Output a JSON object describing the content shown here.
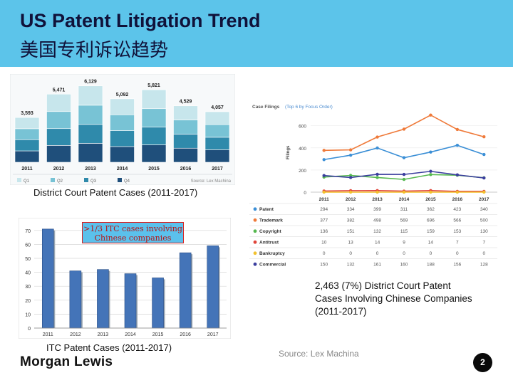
{
  "header": {
    "title": "US Patent Litigation Trend",
    "subtitle": "美国专利诉讼趋势"
  },
  "district_chart": {
    "caption": "District Court Patent Cases (2011-2017)",
    "source_label": "Source: Lex Machina",
    "colors": [
      "#c7e6ec",
      "#78c3d5",
      "#2f8aab",
      "#1f4f7b"
    ],
    "chart_data": {
      "type": "bar",
      "stacked": true,
      "categories": [
        "2011",
        "2012",
        "2013",
        "2014",
        "2015",
        "2016",
        "2017"
      ],
      "totals": [
        3593,
        5471,
        6129,
        5092,
        5821,
        4529,
        4057
      ],
      "total_labels": [
        "3,593",
        "5,471",
        "6,129",
        "5,092",
        "5,821",
        "4,529",
        "4,057"
      ],
      "series": [
        {
          "name": "Q1",
          "values": [
            900,
            1400,
            1550,
            1280,
            1520,
            1130,
            1040
          ]
        },
        {
          "name": "Q2",
          "values": [
            880,
            1370,
            1540,
            1270,
            1470,
            1140,
            1010
          ]
        },
        {
          "name": "Q3",
          "values": [
            900,
            1350,
            1520,
            1280,
            1430,
            1130,
            1000
          ]
        },
        {
          "name": "Q4",
          "values": [
            913,
            1351,
            1519,
            1262,
            1401,
            1129,
            1007
          ]
        }
      ]
    }
  },
  "itc_chart": {
    "caption": "ITC Patent Cases (2011-2017)",
    "callout": ">1/3 ITC cases involving Chinese companies",
    "chart_data": {
      "type": "bar",
      "categories": [
        "2011",
        "2012",
        "2013",
        "2014",
        "2015",
        "2016",
        "2017"
      ],
      "values": [
        71,
        41,
        42,
        39,
        36,
        54,
        59
      ],
      "yticks": [
        0,
        10,
        20,
        30,
        40,
        50,
        60,
        70
      ],
      "ylim": [
        0,
        75
      ],
      "grid": true
    }
  },
  "filings_chart": {
    "title": "Case Filings",
    "subtitle": "(Top 6 by Focus Order)",
    "ylabel": "Filings",
    "chart_data": {
      "type": "line",
      "x": [
        "2011",
        "2012",
        "2013",
        "2014",
        "2015",
        "2016",
        "2017"
      ],
      "yticks": [
        0,
        200,
        400,
        600
      ],
      "ylim": [
        0,
        720
      ],
      "series": [
        {
          "name": "Patent",
          "color": "#3b8fd6",
          "values": [
            294,
            334,
            399,
            311,
            362,
            423,
            340
          ]
        },
        {
          "name": "Trademark",
          "color": "#ef7a3a",
          "values": [
            377,
            382,
            498,
            569,
            696,
            566,
            500
          ]
        },
        {
          "name": "Copyright",
          "color": "#55b84f",
          "values": [
            136,
            151,
            132,
            115,
            159,
            153,
            130
          ]
        },
        {
          "name": "Antitrust",
          "color": "#e0453a",
          "values": [
            10,
            13,
            14,
            9,
            14,
            7,
            7
          ]
        },
        {
          "name": "Bankruptcy",
          "color": "#f2c12e",
          "values": [
            0,
            0,
            0,
            0,
            0,
            0,
            0
          ]
        },
        {
          "name": "Commercial",
          "color": "#3b3e9e",
          "values": [
            150,
            132,
            161,
            160,
            188,
            156,
            128
          ]
        }
      ]
    }
  },
  "note": "2,463 (7%) District Court Patent Cases Involving Chinese Companies (2011-2017)",
  "source": "Source: Lex Machina",
  "logo": "Morgan Lewis",
  "page_number": "2"
}
